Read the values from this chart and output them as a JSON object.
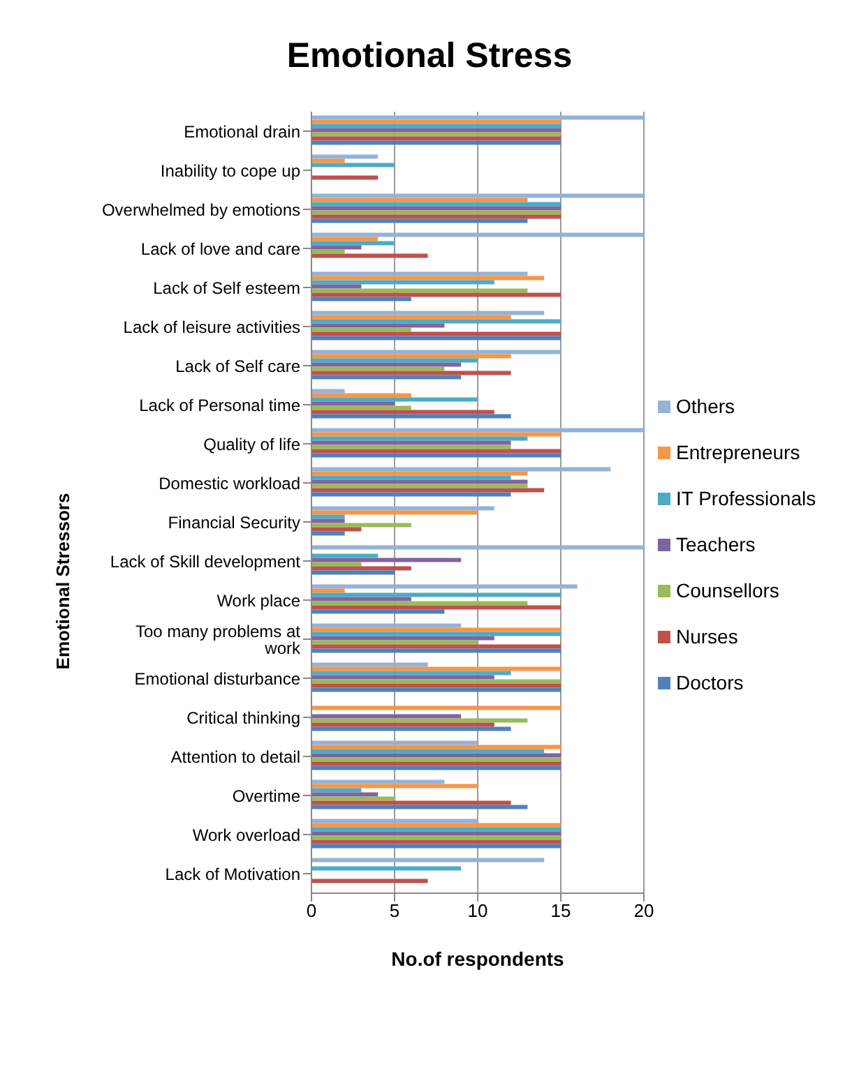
{
  "chart_data": {
    "type": "bar",
    "orientation": "horizontal",
    "title": "Emotional Stress",
    "xlabel": "No.of respondents",
    "ylabel": "Emotional Stressors",
    "categories": [
      "Emotional drain",
      "Inability to cope up",
      "Overwhelmed by emotions",
      "Lack of love and care",
      "Lack of Self esteem",
      "Lack of leisure activities",
      "Lack of Self care",
      "Lack of Personal time",
      "Quality of life",
      "Domestic workload",
      "Financial Security",
      "Lack of Skill development",
      "Work place",
      "Too many problems at work",
      "Emotional disturbance",
      "Critical thinking",
      "Attention to detail",
      "Overtime",
      "Work overload",
      "Lack of Motivation"
    ],
    "series": [
      {
        "name": "Others",
        "color": "#95b3d7",
        "values": [
          20,
          4,
          20,
          20,
          13,
          14,
          15,
          2,
          20,
          18,
          11,
          20,
          16,
          9,
          7,
          0,
          10,
          8,
          10,
          14
        ]
      },
      {
        "name": "Entrepreneurs",
        "color": "#f79646",
        "values": [
          15,
          2,
          13,
          4,
          14,
          12,
          12,
          6,
          15,
          13,
          10,
          0,
          2,
          15,
          15,
          15,
          15,
          10,
          15,
          0
        ]
      },
      {
        "name": "IT Professionals",
        "color": "#4bacc6",
        "values": [
          15,
          5,
          15,
          5,
          11,
          15,
          10,
          10,
          13,
          12,
          2,
          4,
          15,
          15,
          12,
          0,
          14,
          3,
          15,
          9
        ]
      },
      {
        "name": "Teachers",
        "color": "#8064a2",
        "values": [
          15,
          0,
          15,
          3,
          3,
          8,
          9,
          5,
          12,
          13,
          2,
          9,
          6,
          11,
          11,
          9,
          15,
          4,
          15,
          0
        ]
      },
      {
        "name": "Counsellors",
        "color": "#9bbb59",
        "values": [
          15,
          0,
          15,
          2,
          13,
          6,
          8,
          6,
          12,
          13,
          6,
          3,
          13,
          10,
          15,
          13,
          15,
          5,
          15,
          0
        ]
      },
      {
        "name": "Nurses",
        "color": "#c0504d",
        "values": [
          15,
          4,
          15,
          7,
          15,
          15,
          12,
          11,
          15,
          14,
          3,
          6,
          15,
          15,
          15,
          11,
          15,
          12,
          15,
          7
        ]
      },
      {
        "name": "Doctors",
        "color": "#4f81bd",
        "values": [
          15,
          0,
          13,
          0,
          6,
          15,
          9,
          12,
          15,
          12,
          2,
          5,
          8,
          15,
          15,
          12,
          15,
          13,
          15,
          0
        ]
      }
    ],
    "xlim": [
      0,
      20
    ],
    "xticks": [
      0,
      5,
      10,
      15,
      20
    ],
    "grid": "x",
    "legend": "right"
  }
}
